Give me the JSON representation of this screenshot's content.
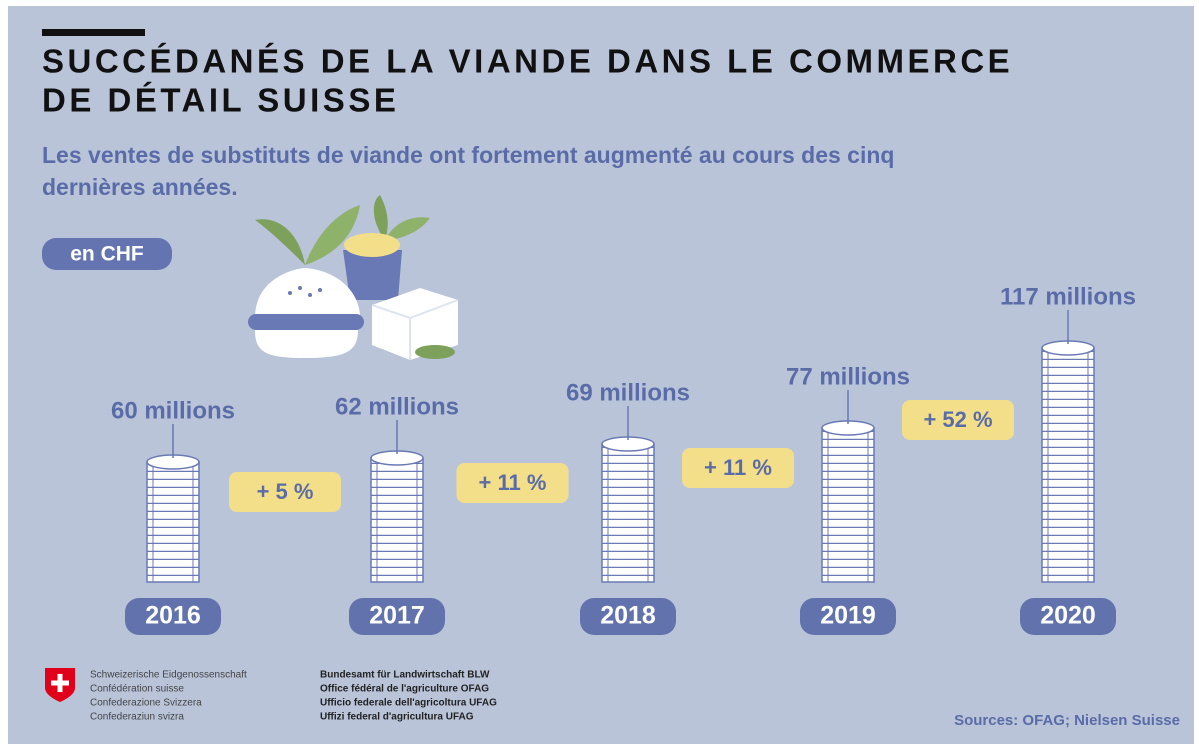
{
  "chart_data": {
    "type": "bar",
    "title": [
      "SUCCÉDANÉS DE LA VIANDE DANS LE COMMERCE",
      "DE DÉTAIL SUISSE"
    ],
    "subtitle": [
      "Les ventes de substituts de viande ont fortement augmenté au cours des cinq",
      "dernières années."
    ],
    "unit_label": "en CHF",
    "categories": [
      "2016",
      "2017",
      "2018",
      "2019",
      "2020"
    ],
    "values": [
      60,
      62,
      69,
      77,
      117
    ],
    "value_labels": [
      "60 millions",
      "62 millions",
      "69 millions",
      "77 millions",
      "117 millions"
    ],
    "annotations": [
      "+ 5 %",
      "+ 11 %",
      "+ 11 %",
      "+ 52 %"
    ],
    "color": "#6979b5"
  },
  "footer": {
    "confederation": [
      "Schweizerische Eidgenossenschaft",
      "Confédération suisse",
      "Confederazione Svizzera",
      "Confederaziun svizra"
    ],
    "office": [
      "Bundesamt für Landwirtschaft BLW",
      "Office fédéral de l'agriculture OFAG",
      "Ufficio federale dell'agricoltura UFAG",
      "Uffizi federal d'agricultura UFAG"
    ],
    "sources": "Sources: OFAG; Nielsen Suisse"
  }
}
